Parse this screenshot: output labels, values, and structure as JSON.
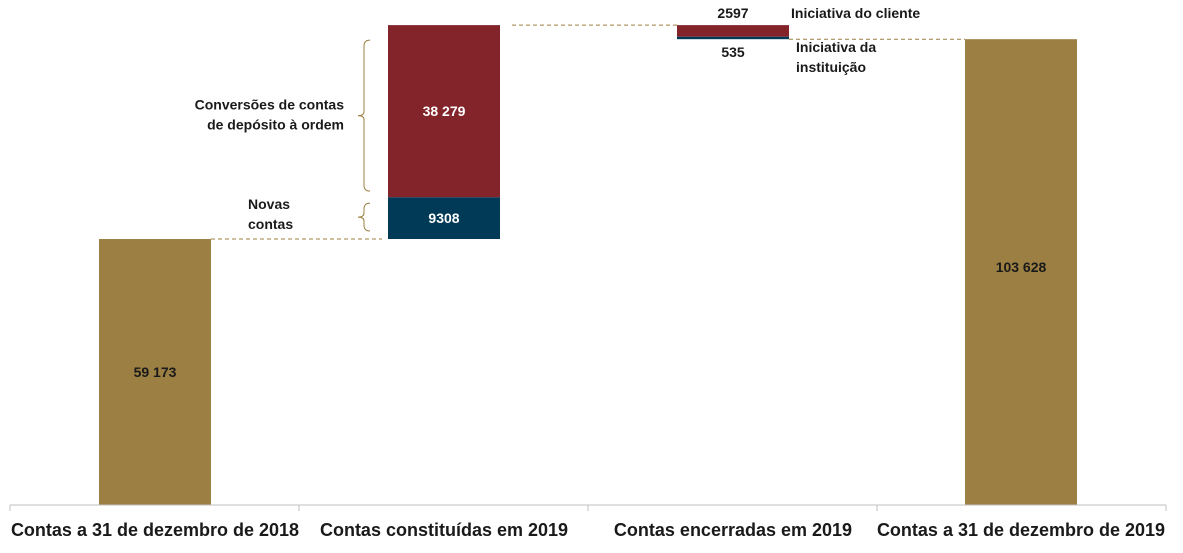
{
  "chart_data": {
    "type": "bar",
    "subtype": "waterfall",
    "categories": [
      "Contas a 31 de dezembro de 2018",
      "Contas constituídas em 2019",
      "Contas encerradas em 2019",
      "Contas a 31 de dezembro de 2019"
    ],
    "opening": {
      "value": 59173,
      "label": "59 173"
    },
    "increases": [
      {
        "value": 9308,
        "label": "9308",
        "annotation": [
          "Novas",
          "contas"
        ]
      },
      {
        "value": 38279,
        "label": "38 279",
        "annotation": [
          "Conversões de contas",
          "de depósito à ordem"
        ]
      }
    ],
    "decreases": [
      {
        "value": 2597,
        "label": "2597",
        "annotation": [
          "Iniciativa do cliente"
        ]
      },
      {
        "value": 535,
        "label": "535",
        "annotation": [
          "Iniciativa da",
          "instituição"
        ]
      }
    ],
    "closing": {
      "value": 103628,
      "label": "103 628"
    },
    "colors": {
      "total": "#9c7f42",
      "new_accounts": "#003a57",
      "conversions": "#83232a",
      "client_initiative": "#83232a",
      "institution_initiative": "#003a57",
      "connector": "#9c7f42",
      "axis": "#bfbfbf",
      "bracket": "#9c7f42"
    },
    "grid": false,
    "legend": "none"
  }
}
